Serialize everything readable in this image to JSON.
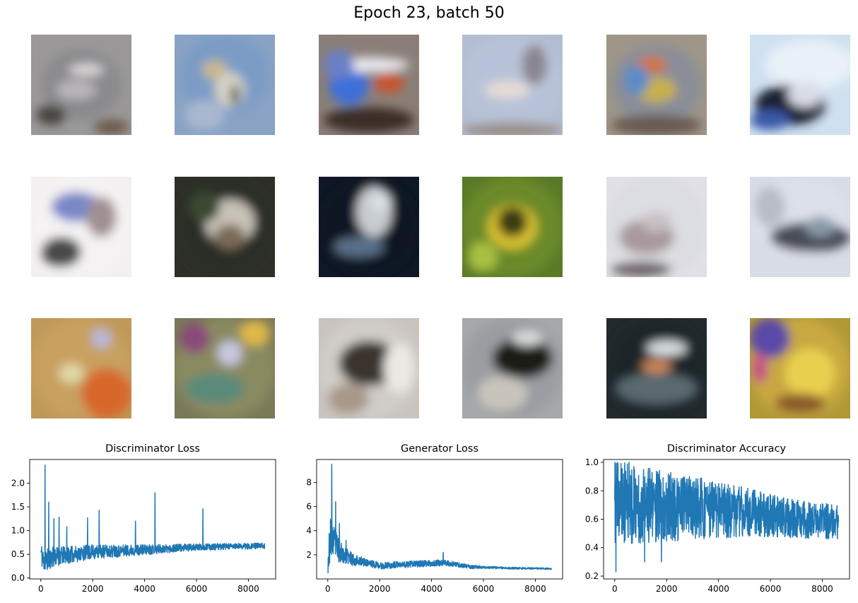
{
  "figure": {
    "title": "Epoch 23, batch 50"
  },
  "samples": [
    {
      "blobs": [
        [
          "#8b8a8c",
          0.5,
          0.5,
          0.8,
          0.7
        ],
        [
          "#d9d6d8",
          0.55,
          0.35,
          0.35,
          0.12
        ],
        [
          "#b7b5ba",
          0.45,
          0.55,
          0.4,
          0.2
        ],
        [
          "#4a4540",
          0.2,
          0.8,
          0.3,
          0.2
        ],
        [
          "#6d5a48",
          0.8,
          0.92,
          0.35,
          0.15
        ]
      ],
      "bg": "#9a9899"
    },
    {
      "blobs": [
        [
          "#7c9cc6",
          0.5,
          0.4,
          0.9,
          0.8
        ],
        [
          "#c8b78c",
          0.4,
          0.35,
          0.25,
          0.2
        ],
        [
          "#d6d2c4",
          0.55,
          0.55,
          0.3,
          0.35
        ],
        [
          "#2f3a38",
          0.6,
          0.6,
          0.08,
          0.2
        ],
        [
          "#a8b8d0",
          0.3,
          0.8,
          0.4,
          0.3
        ]
      ],
      "bg": "#8aa2c4"
    },
    {
      "blobs": [
        [
          "#3d6fd8",
          0.3,
          0.5,
          0.4,
          0.4
        ],
        [
          "#c8552e",
          0.7,
          0.48,
          0.3,
          0.2
        ],
        [
          "#e8e8ee",
          0.5,
          0.3,
          0.8,
          0.15
        ],
        [
          "#3a2e28",
          0.5,
          0.85,
          0.9,
          0.25
        ],
        [
          "#6a7fc8",
          0.2,
          0.3,
          0.3,
          0.3
        ]
      ],
      "bg": "#8a7f78"
    },
    {
      "blobs": [
        [
          "#b7c2d8",
          0.5,
          0.5,
          1,
          1
        ],
        [
          "#8a8690",
          0.72,
          0.3,
          0.25,
          0.4
        ],
        [
          "#e6dcd6",
          0.45,
          0.55,
          0.45,
          0.18
        ],
        [
          "#9a8e86",
          0.5,
          0.95,
          1,
          0.15
        ]
      ],
      "bg": "#b4bed2"
    },
    {
      "blobs": [
        [
          "#8a8e98",
          0.5,
          0.5,
          0.9,
          0.8
        ],
        [
          "#d87034",
          0.45,
          0.3,
          0.3,
          0.15
        ],
        [
          "#c8b04a",
          0.5,
          0.55,
          0.4,
          0.25
        ],
        [
          "#5a8cc8",
          0.3,
          0.45,
          0.25,
          0.3
        ],
        [
          "#6a5a50",
          0.5,
          0.9,
          0.9,
          0.2
        ]
      ],
      "bg": "#9e9688"
    },
    {
      "blobs": [
        [
          "#e8f0f8",
          0.6,
          0.3,
          0.9,
          0.5
        ],
        [
          "#1a2030",
          0.4,
          0.7,
          0.7,
          0.4
        ],
        [
          "#d8dce6",
          0.55,
          0.6,
          0.35,
          0.25
        ],
        [
          "#3a5aa8",
          0.2,
          0.85,
          0.4,
          0.2
        ]
      ],
      "bg": "#cfe0f0"
    },
    {
      "blobs": [
        [
          "#f4f2f2",
          0.5,
          0.5,
          1,
          1
        ],
        [
          "#7a88c8",
          0.45,
          0.3,
          0.5,
          0.3
        ],
        [
          "#4a4848",
          0.3,
          0.75,
          0.4,
          0.3
        ],
        [
          "#a09090",
          0.7,
          0.4,
          0.3,
          0.4
        ]
      ],
      "bg": "#f2f0f0"
    },
    {
      "blobs": [
        [
          "#2a2e28",
          0.5,
          0.5,
          1,
          1
        ],
        [
          "#c8c2b8",
          0.55,
          0.45,
          0.5,
          0.45
        ],
        [
          "#7a6a58",
          0.55,
          0.6,
          0.3,
          0.25
        ],
        [
          "#3a4a30",
          0.3,
          0.3,
          0.3,
          0.3
        ]
      ],
      "bg": "#2e3028"
    },
    {
      "blobs": [
        [
          "#0e1422",
          0.5,
          0.5,
          1,
          1
        ],
        [
          "#c8ccd0",
          0.55,
          0.35,
          0.35,
          0.5
        ],
        [
          "#5a7088",
          0.4,
          0.7,
          0.5,
          0.2
        ],
        [
          "#d8e0e4",
          0.62,
          0.25,
          0.2,
          0.2
        ]
      ],
      "bg": "#101826"
    },
    {
      "blobs": [
        [
          "#6a8a2a",
          0.5,
          0.5,
          1,
          1
        ],
        [
          "#d8c030",
          0.5,
          0.5,
          0.5,
          0.45
        ],
        [
          "#3a3a18",
          0.5,
          0.45,
          0.3,
          0.3
        ],
        [
          "#a8c040",
          0.2,
          0.8,
          0.3,
          0.3
        ]
      ],
      "bg": "#5a7a28"
    },
    {
      "blobs": [
        [
          "#dcdde2",
          0.5,
          0.5,
          1,
          1
        ],
        [
          "#a89a9c",
          0.4,
          0.6,
          0.55,
          0.35
        ],
        [
          "#6a6064",
          0.35,
          0.92,
          0.6,
          0.15
        ],
        [
          "#c8c0c2",
          0.5,
          0.45,
          0.3,
          0.2
        ]
      ],
      "bg": "#e0e0e6"
    },
    {
      "blobs": [
        [
          "#dce0ea",
          0.5,
          0.4,
          1,
          0.8
        ],
        [
          "#4a4e5a",
          0.6,
          0.6,
          0.8,
          0.3
        ],
        [
          "#8a9aa8",
          0.7,
          0.5,
          0.3,
          0.2
        ],
        [
          "#b8bcc6",
          0.2,
          0.3,
          0.3,
          0.4
        ]
      ],
      "bg": "#d8dce6"
    },
    {
      "blobs": [
        [
          "#c8a060",
          0.5,
          0.5,
          1,
          1
        ],
        [
          "#d8682a",
          0.75,
          0.75,
          0.5,
          0.5
        ],
        [
          "#b8b8d8",
          0.7,
          0.2,
          0.2,
          0.2
        ],
        [
          "#e0d8a8",
          0.4,
          0.55,
          0.25,
          0.2
        ]
      ],
      "bg": "#c09858"
    },
    {
      "blobs": [
        [
          "#8a8a60",
          0.5,
          0.5,
          1,
          1
        ],
        [
          "#8a4a7a",
          0.2,
          0.2,
          0.3,
          0.3
        ],
        [
          "#c8c8e0",
          0.55,
          0.35,
          0.25,
          0.25
        ],
        [
          "#5a8a7a",
          0.4,
          0.7,
          0.6,
          0.3
        ],
        [
          "#e0b848",
          0.8,
          0.15,
          0.3,
          0.25
        ]
      ],
      "bg": "#7a7a58"
    },
    {
      "blobs": [
        [
          "#d0ccc8",
          0.5,
          0.5,
          1,
          1
        ],
        [
          "#3a342e",
          0.5,
          0.45,
          0.6,
          0.45
        ],
        [
          "#a89888",
          0.3,
          0.8,
          0.4,
          0.3
        ],
        [
          "#ece8e4",
          0.8,
          0.5,
          0.3,
          0.5
        ]
      ],
      "bg": "#cac4be"
    },
    {
      "blobs": [
        [
          "#9a9ea2",
          0.5,
          0.5,
          1,
          1
        ],
        [
          "#1a1a16",
          0.6,
          0.4,
          0.6,
          0.4
        ],
        [
          "#d8dcdc",
          0.65,
          0.2,
          0.3,
          0.15
        ],
        [
          "#c8c4bc",
          0.4,
          0.75,
          0.5,
          0.35
        ]
      ],
      "bg": "#a6a8aa"
    },
    {
      "blobs": [
        [
          "#1e262a",
          0.5,
          0.5,
          1,
          1
        ],
        [
          "#c8845a",
          0.5,
          0.48,
          0.3,
          0.15
        ],
        [
          "#5a6a70",
          0.5,
          0.7,
          0.8,
          0.3
        ],
        [
          "#d8dee0",
          0.6,
          0.3,
          0.4,
          0.15
        ]
      ],
      "bg": "#222a2e"
    },
    {
      "blobs": [
        [
          "#c8a840",
          0.5,
          0.5,
          1,
          1
        ],
        [
          "#5a4aa8",
          0.2,
          0.2,
          0.4,
          0.4
        ],
        [
          "#e8d050",
          0.6,
          0.55,
          0.5,
          0.5
        ],
        [
          "#8a5a2a",
          0.5,
          0.85,
          0.5,
          0.2
        ],
        [
          "#c84a8a",
          0.1,
          0.5,
          0.15,
          0.3
        ]
      ],
      "bg": "#b09838"
    }
  ],
  "chart_data": [
    {
      "type": "line",
      "title": "Discriminator Loss",
      "xlabel": "",
      "ylabel": "",
      "xlim": [
        -430,
        9050
      ],
      "ylim": [
        -0.02,
        2.5
      ],
      "xticks": [
        0,
        2000,
        4000,
        6000,
        8000
      ],
      "yticks": [
        0.0,
        0.5,
        1.0,
        1.5,
        2.0
      ],
      "series": [
        {
          "color": "#1f77b4",
          "n": 8625,
          "trend": [
            [
              0,
              0.55
            ],
            [
              100,
              0.35
            ],
            [
              500,
              0.45
            ],
            [
              2000,
              0.55
            ],
            [
              4000,
              0.6
            ],
            [
              6000,
              0.65
            ],
            [
              8625,
              0.68
            ]
          ],
          "noise": [
            [
              0,
              0.25
            ],
            [
              1000,
              0.18
            ],
            [
              3000,
              0.13
            ],
            [
              6000,
              0.07
            ],
            [
              8625,
              0.06
            ]
          ],
          "spikes": [
            [
              160,
              2.38
            ],
            [
              300,
              1.6
            ],
            [
              500,
              1.25
            ],
            [
              700,
              1.28
            ],
            [
              1000,
              1.08
            ],
            [
              1800,
              1.27
            ],
            [
              2250,
              1.43
            ],
            [
              3650,
              1.2
            ],
            [
              4400,
              1.8
            ],
            [
              6250,
              1.46
            ]
          ],
          "min": 0.05,
          "max": 2.38,
          "seed": 11
        }
      ]
    },
    {
      "type": "line",
      "title": "Generator Loss",
      "xlabel": "",
      "ylabel": "",
      "xlim": [
        -430,
        9050
      ],
      "ylim": [
        0.0,
        9.9
      ],
      "xticks": [
        0,
        2000,
        4000,
        6000,
        8000
      ],
      "yticks": [
        2,
        4,
        6,
        8
      ],
      "series": [
        {
          "color": "#1f77b4",
          "n": 8625,
          "trend": [
            [
              0,
              1.0
            ],
            [
              100,
              3.5
            ],
            [
              300,
              2.8
            ],
            [
              600,
              2.0
            ],
            [
              1000,
              1.6
            ],
            [
              2000,
              1.1
            ],
            [
              3000,
              1.2
            ],
            [
              4500,
              1.35
            ],
            [
              5500,
              1.0
            ],
            [
              7000,
              0.9
            ],
            [
              8625,
              0.85
            ]
          ],
          "noise": [
            [
              0,
              1.5
            ],
            [
              200,
              1.5
            ],
            [
              600,
              0.7
            ],
            [
              1500,
              0.3
            ],
            [
              4500,
              0.25
            ],
            [
              6000,
              0.1
            ],
            [
              8625,
              0.06
            ]
          ],
          "spikes": [
            [
              150,
              9.5
            ],
            [
              300,
              6.4
            ],
            [
              450,
              4.6
            ],
            [
              700,
              3.2
            ],
            [
              4450,
              2.2
            ]
          ],
          "min": 0.5,
          "max": 9.5,
          "seed": 23
        }
      ]
    },
    {
      "type": "line",
      "title": "Discriminator Accuracy",
      "xlabel": "",
      "ylabel": "",
      "xlim": [
        -430,
        9050
      ],
      "ylim": [
        0.18,
        1.02
      ],
      "xticks": [
        0,
        2000,
        4000,
        6000,
        8000
      ],
      "yticks": [
        0.2,
        0.4,
        0.6,
        0.8,
        1.0
      ],
      "series": [
        {
          "color": "#1f77b4",
          "n": 8625,
          "trend": [
            [
              0,
              0.72
            ],
            [
              1000,
              0.7
            ],
            [
              3000,
              0.68
            ],
            [
              5000,
              0.65
            ],
            [
              7000,
              0.6
            ],
            [
              8625,
              0.58
            ]
          ],
          "noise": [
            [
              0,
              0.3
            ],
            [
              1500,
              0.26
            ],
            [
              4000,
              0.2
            ],
            [
              6500,
              0.14
            ],
            [
              8625,
              0.12
            ]
          ],
          "spikes": [
            [
              50,
              0.23
            ],
            [
              1150,
              0.3
            ],
            [
              1800,
              0.3
            ],
            [
              550,
              1.0
            ],
            [
              100,
              1.0
            ]
          ],
          "min": 0.23,
          "max": 1.0,
          "seed": 37
        }
      ]
    }
  ]
}
